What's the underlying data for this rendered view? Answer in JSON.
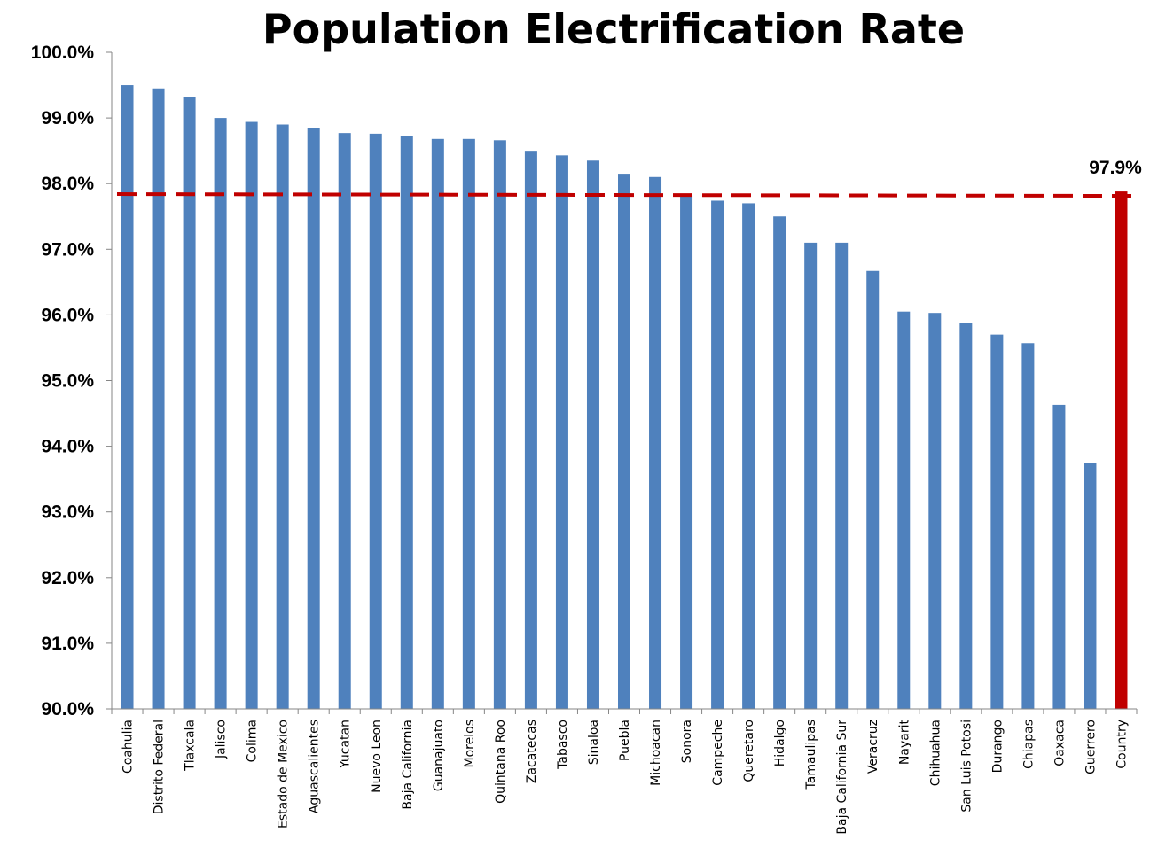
{
  "chart_data": {
    "type": "bar",
    "title": "Population Electrification Rate",
    "xlabel": "",
    "ylabel": "",
    "ylim": [
      90.0,
      100.0
    ],
    "yticks": [
      "90.0%",
      "91.0%",
      "92.0%",
      "93.0%",
      "94.0%",
      "95.0%",
      "96.0%",
      "97.0%",
      "98.0%",
      "99.0%",
      "100.0%"
    ],
    "grid": false,
    "categories": [
      "Coahulia",
      "Distrito Federal",
      "Tlaxcala",
      "Jalisco",
      "Colima",
      "Estado de Mexico",
      "Aguascalientes",
      "Yucatan",
      "Nuevo Leon",
      "Baja California",
      "Guanajuato",
      "Morelos",
      "Quintana Roo",
      "Zacatecas",
      "Tabasco",
      "Sinaloa",
      "Puebla",
      "Michoacan",
      "Sonora",
      "Campeche",
      "Queretaro",
      "Hidalgo",
      "Tamaulipas",
      "Baja California Sur",
      "Veracruz",
      "Nayarit",
      "Chihuahua",
      "San Luis Potosi",
      "Durango",
      "Chiapas",
      "Oaxaca",
      "Guerrero",
      "Country"
    ],
    "values": [
      99.5,
      99.45,
      99.32,
      99.0,
      98.94,
      98.9,
      98.85,
      98.77,
      98.76,
      98.73,
      98.68,
      98.68,
      98.66,
      98.5,
      98.43,
      98.35,
      98.15,
      98.1,
      97.82,
      97.74,
      97.7,
      97.5,
      97.1,
      97.1,
      96.67,
      96.05,
      96.03,
      95.88,
      95.7,
      95.57,
      94.63,
      93.75,
      97.88
    ],
    "bar_color": "#4F81BD",
    "highlight_category": "Country",
    "highlight_color": "#C00000",
    "reference_line": {
      "value": 97.84,
      "style": "dashed",
      "color": "#C00000"
    },
    "annotation": "97.9%"
  }
}
